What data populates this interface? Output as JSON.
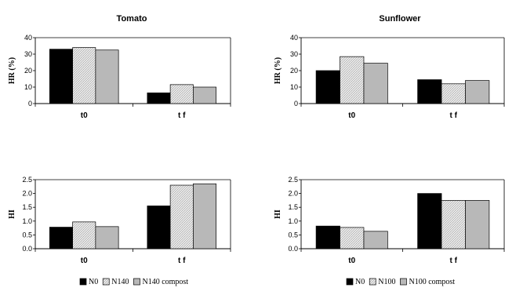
{
  "columns": [
    {
      "title": "Tomato",
      "legend": [
        "N0",
        "N140",
        "N140 compost"
      ]
    },
    {
      "title": "Sunflower",
      "legend": [
        "N0",
        "N100",
        "N100 compost"
      ]
    }
  ],
  "series_colors": [
    "#000000",
    "#e8e8e8",
    "#b8b8b8"
  ],
  "series_patterns": [
    "solid",
    "hatched",
    "solid"
  ],
  "chart_data": [
    {
      "type": "bar",
      "title": "Tomato",
      "ylabel": "HR (%)",
      "categories": [
        "t0",
        "t f"
      ],
      "yticks": [
        "0",
        "10",
        "20",
        "30",
        "40"
      ],
      "ylim": [
        0,
        40
      ],
      "series": [
        {
          "name": "N0",
          "values": [
            33,
            6.5
          ]
        },
        {
          "name": "N140",
          "values": [
            34,
            11.5
          ]
        },
        {
          "name": "N140 compost",
          "values": [
            32.5,
            10
          ]
        }
      ]
    },
    {
      "type": "bar",
      "title": "Sunflower",
      "ylabel": "HR (%)",
      "categories": [
        "t0",
        "t f"
      ],
      "yticks": [
        "0",
        "10",
        "20",
        "30",
        "40"
      ],
      "ylim": [
        0,
        40
      ],
      "series": [
        {
          "name": "N0",
          "values": [
            20,
            14.5
          ]
        },
        {
          "name": "N100",
          "values": [
            28.5,
            12
          ]
        },
        {
          "name": "N100 compost",
          "values": [
            24.5,
            14
          ]
        }
      ]
    },
    {
      "type": "bar",
      "title": "",
      "ylabel": "HI",
      "categories": [
        "t0",
        "t f"
      ],
      "yticks": [
        "0.0",
        "0.5",
        "1.0",
        "1.5",
        "2.0",
        "2.5"
      ],
      "ylim": [
        0,
        2.5
      ],
      "series": [
        {
          "name": "N0",
          "values": [
            0.78,
            1.55
          ]
        },
        {
          "name": "N140",
          "values": [
            0.97,
            2.3
          ]
        },
        {
          "name": "N140 compost",
          "values": [
            0.8,
            2.35
          ]
        }
      ]
    },
    {
      "type": "bar",
      "title": "",
      "ylabel": "HI",
      "categories": [
        "t0",
        "t f"
      ],
      "yticks": [
        "0.0",
        "0.5",
        "1.0",
        "1.5",
        "2.0",
        "2.5"
      ],
      "ylim": [
        0,
        2.5
      ],
      "series": [
        {
          "name": "N0",
          "values": [
            0.82,
            2.0
          ]
        },
        {
          "name": "N100",
          "values": [
            0.77,
            1.75
          ]
        },
        {
          "name": "N100 compost",
          "values": [
            0.63,
            1.75
          ]
        }
      ]
    }
  ]
}
